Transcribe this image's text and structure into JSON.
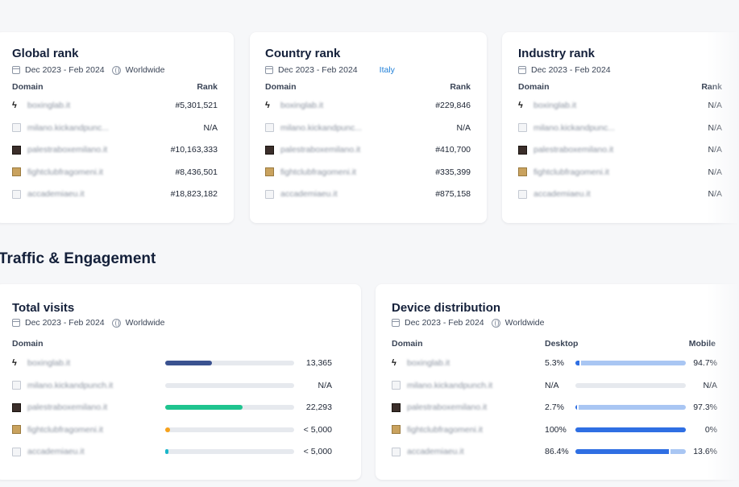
{
  "colors": {
    "accent_link": "#1f7fd8",
    "bar_navy": "#3a5290",
    "bar_green": "#1fc48f",
    "bar_orange": "#f7a21b",
    "bar_teal": "#1ab6c9",
    "desktop_blue": "#2f6fe3",
    "mobile_light_blue": "#a9c6f3"
  },
  "rank_cards": [
    {
      "title": "Global rank",
      "date": "Dec 2023 - Feb 2024",
      "region": "Worldwide",
      "region_icon": "globe-icon",
      "col_domain": "Domain",
      "col_rank": "Rank",
      "rows": [
        {
          "domain": "boxinglab.it",
          "value": "#5,301,521",
          "icon": "bolt"
        },
        {
          "domain": "milano.kickandpunc...",
          "value": "N/A",
          "icon": "blank"
        },
        {
          "domain": "palestraboxemilano.it",
          "value": "#10,163,333",
          "icon": "dark"
        },
        {
          "domain": "fightclubfragomeni.it",
          "value": "#8,436,501",
          "icon": "tan"
        },
        {
          "domain": "accademiaeu.it",
          "value": "#18,823,182",
          "icon": "blank"
        }
      ]
    },
    {
      "title": "Country rank",
      "date": "Dec 2023 - Feb 2024",
      "region": "Italy",
      "region_icon": "italy-flag-icon",
      "col_domain": "Domain",
      "col_rank": "Rank",
      "rows": [
        {
          "domain": "boxinglab.it",
          "value": "#229,846",
          "icon": "bolt"
        },
        {
          "domain": "milano.kickandpunc...",
          "value": "N/A",
          "icon": "blank"
        },
        {
          "domain": "palestraboxemilano.it",
          "value": "#410,700",
          "icon": "dark"
        },
        {
          "domain": "fightclubfragomeni.it",
          "value": "#335,399",
          "icon": "tan"
        },
        {
          "domain": "accademiaeu.it",
          "value": "#875,158",
          "icon": "blank"
        }
      ]
    },
    {
      "title": "Industry rank",
      "date": "Dec 2023 - Feb 2024",
      "region": "",
      "region_icon": "",
      "col_domain": "Domain",
      "col_rank": "Rank",
      "rows": [
        {
          "domain": "boxinglab.it",
          "value": "N/A",
          "icon": "bolt"
        },
        {
          "domain": "milano.kickandpunc...",
          "value": "N/A",
          "icon": "blank"
        },
        {
          "domain": "palestraboxemilano.it",
          "value": "N/A",
          "icon": "dark"
        },
        {
          "domain": "fightclubfragomeni.it",
          "value": "N/A",
          "icon": "tan"
        },
        {
          "domain": "accademiaeu.it",
          "value": "N/A",
          "icon": "blank"
        }
      ]
    }
  ],
  "section_title": "Traffic & Engagement",
  "total_visits": {
    "title": "Total visits",
    "date": "Dec 2023 - Feb 2024",
    "region": "Worldwide",
    "col_domain": "Domain",
    "rows": [
      {
        "domain": "boxinglab.it",
        "value": "13,365",
        "icon": "bolt",
        "bar_fraction": 0.36,
        "bar_color": "#3a5290"
      },
      {
        "domain": "milano.kickandpunch.it",
        "value": "N/A",
        "icon": "blank",
        "bar_fraction": 0,
        "bar_color": ""
      },
      {
        "domain": "palestraboxemilano.it",
        "value": "22,293",
        "icon": "dark",
        "bar_fraction": 0.6,
        "bar_color": "#1fc48f"
      },
      {
        "domain": "fightclubfragomeni.it",
        "value": "< 5,000",
        "icon": "tan",
        "bar_fraction": 0.04,
        "bar_color": "#f7a21b"
      },
      {
        "domain": "accademiaeu.it",
        "value": "< 5,000",
        "icon": "blank",
        "bar_fraction": 0.025,
        "bar_color": "#1ab6c9"
      }
    ]
  },
  "device_distribution": {
    "title": "Device distribution",
    "date": "Dec 2023 - Feb 2024",
    "region": "Worldwide",
    "col_domain": "Domain",
    "col_desktop": "Desktop",
    "col_mobile": "Mobile",
    "rows": [
      {
        "domain": "boxinglab.it",
        "desktop": "5.3%",
        "mobile": "94.7%",
        "icon": "bolt",
        "desktop_fraction": 0.053
      },
      {
        "domain": "milano.kickandpunch.it",
        "desktop": "N/A",
        "mobile": "N/A",
        "icon": "blank",
        "desktop_fraction": null
      },
      {
        "domain": "palestraboxemilano.it",
        "desktop": "2.7%",
        "mobile": "97.3%",
        "icon": "dark",
        "desktop_fraction": 0.027
      },
      {
        "domain": "fightclubfragomeni.it",
        "desktop": "100%",
        "mobile": "0%",
        "icon": "tan",
        "desktop_fraction": 1.0
      },
      {
        "domain": "accademiaeu.it",
        "desktop": "86.4%",
        "mobile": "13.6%",
        "icon": "blank",
        "desktop_fraction": 0.864
      }
    ]
  }
}
